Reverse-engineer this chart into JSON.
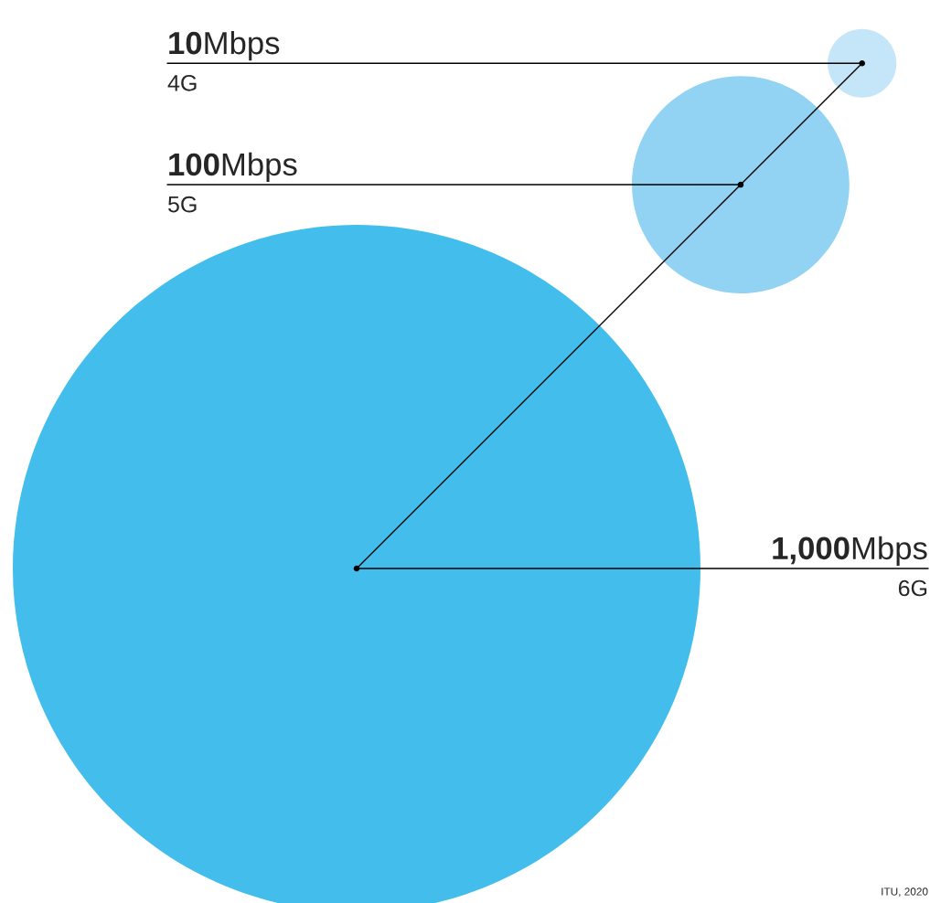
{
  "chart_data": {
    "type": "other",
    "categories": [
      "4G",
      "5G",
      "6G"
    ],
    "values": [
      10,
      100,
      1000
    ],
    "value_labels": [
      "10Mbps",
      "100Mbps",
      "1,000Mbps"
    ],
    "colors": [
      "#c5e6f8",
      "#92d3f3",
      "#42bdec"
    ],
    "annotations": [
      "ITU, 2020"
    ]
  }
}
